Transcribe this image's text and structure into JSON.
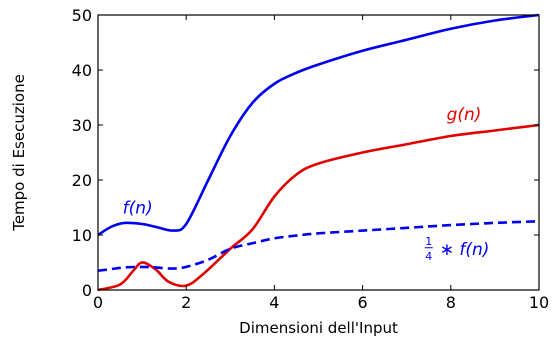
{
  "chart_data": {
    "type": "line",
    "xlabel": "Dimensioni dell'Input",
    "ylabel": "Tempo di Esecuzione",
    "xlim": [
      0,
      10
    ],
    "ylim": [
      0,
      50
    ],
    "xticks": [
      0,
      2,
      4,
      6,
      8,
      10
    ],
    "yticks": [
      0,
      10,
      20,
      30,
      40,
      50
    ],
    "grid": false,
    "series": [
      {
        "name": "f(n)",
        "color": "#0000ee",
        "style": "solid",
        "x": [
          0,
          0.3,
          0.6,
          1.0,
          1.3,
          1.7,
          2.0,
          2.5,
          3.0,
          3.5,
          4.0,
          4.5,
          5.0,
          6.0,
          7.0,
          8.0,
          9.0,
          10.0
        ],
        "y": [
          10,
          11.5,
          12.2,
          12.0,
          11.5,
          10.8,
          12,
          20,
          28,
          34,
          37.5,
          39.5,
          41,
          43.5,
          45.5,
          47.5,
          49,
          50
        ]
      },
      {
        "name": "g(n)",
        "color": "#e00000",
        "style": "solid",
        "x": [
          0,
          0.5,
          0.8,
          1.0,
          1.3,
          1.6,
          2.0,
          2.4,
          3.0,
          3.5,
          4.0,
          4.5,
          5.0,
          6.0,
          7.0,
          8.0,
          9.0,
          10.0
        ],
        "y": [
          0,
          1.0,
          3.5,
          5.0,
          3.8,
          1.5,
          0.8,
          3.0,
          7.5,
          11,
          17,
          21,
          23,
          25,
          26.5,
          28,
          29,
          30
        ]
      },
      {
        "name": "¼ ∗ f(n)",
        "color": "#0000ee",
        "style": "dashed",
        "x": [
          0,
          0.3,
          0.6,
          1.0,
          1.3,
          1.7,
          2.0,
          2.5,
          3.0,
          3.5,
          4.0,
          4.5,
          5.0,
          6.0,
          7.0,
          8.0,
          9.0,
          10.0
        ],
        "y": [
          3.5,
          3.8,
          4.1,
          4.2,
          4.1,
          3.9,
          4.2,
          5.5,
          7.5,
          8.5,
          9.4,
          9.9,
          10.3,
          10.8,
          11.3,
          11.8,
          12.2,
          12.5
        ]
      }
    ],
    "annotations": [
      {
        "series": 0,
        "text_main": "f(n)",
        "x": 0.9,
        "y": 15
      },
      {
        "series": 1,
        "text_main": "g(n)",
        "x": 8.3,
        "y": 32
      },
      {
        "series": 2,
        "frac_num": "1",
        "frac_den": "4",
        "text_main": "∗ f(n)",
        "x": 7.5,
        "y": 7.5
      }
    ]
  }
}
